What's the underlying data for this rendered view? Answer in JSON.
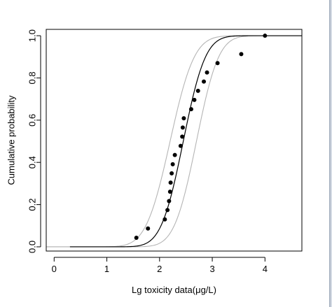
{
  "chart_data": {
    "type": "line",
    "title": "",
    "xlabel": "Lg toxicity data(μg/L)",
    "ylabel": "Cumulative probability",
    "xlim": [
      -0.15,
      4.7
    ],
    "ylim": [
      -0.02,
      1.03
    ],
    "xticks": [
      "0",
      "1",
      "2",
      "3",
      "4"
    ],
    "yticks": [
      "0.0",
      "0.2",
      "0.4",
      "0.6",
      "0.8",
      "1.0"
    ],
    "grid": false,
    "legend": "none",
    "fitted_curve": {
      "mu": 2.45,
      "sigma": 0.33,
      "x_start": 0.3,
      "x_end": 4.7,
      "color": "#000000"
    },
    "confidence_bands": [
      {
        "mu": 2.2,
        "sigma": 0.36,
        "x_start": -0.15,
        "x_end": 4.7,
        "color": "#b5b5b5"
      },
      {
        "mu": 2.7,
        "sigma": 0.33,
        "x_start": -0.15,
        "x_end": 4.7,
        "color": "#b5b5b5"
      }
    ],
    "points": [
      {
        "x": 1.56,
        "y": 0.043
      },
      {
        "x": 1.78,
        "y": 0.087
      },
      {
        "x": 2.1,
        "y": 0.13
      },
      {
        "x": 2.15,
        "y": 0.174
      },
      {
        "x": 2.18,
        "y": 0.217
      },
      {
        "x": 2.2,
        "y": 0.261
      },
      {
        "x": 2.21,
        "y": 0.304
      },
      {
        "x": 2.23,
        "y": 0.348
      },
      {
        "x": 2.25,
        "y": 0.391
      },
      {
        "x": 2.29,
        "y": 0.435
      },
      {
        "x": 2.4,
        "y": 0.478
      },
      {
        "x": 2.43,
        "y": 0.522
      },
      {
        "x": 2.44,
        "y": 0.565
      },
      {
        "x": 2.46,
        "y": 0.609
      },
      {
        "x": 2.6,
        "y": 0.652
      },
      {
        "x": 2.66,
        "y": 0.696
      },
      {
        "x": 2.73,
        "y": 0.739
      },
      {
        "x": 2.84,
        "y": 0.783
      },
      {
        "x": 2.9,
        "y": 0.826
      },
      {
        "x": 3.1,
        "y": 0.87
      },
      {
        "x": 3.55,
        "y": 0.913
      },
      {
        "x": 4.0,
        "y": 1.0
      }
    ]
  }
}
